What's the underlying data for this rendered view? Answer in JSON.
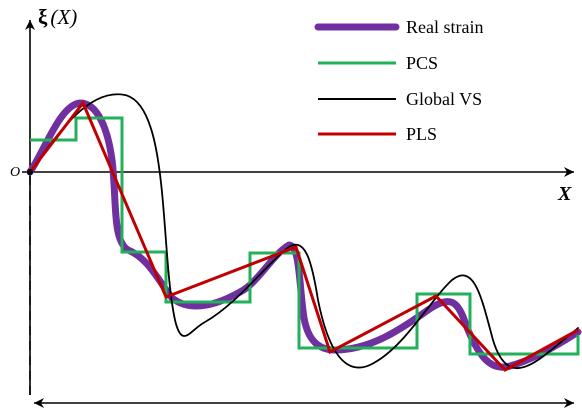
{
  "diagram": {
    "y_axis_label": {
      "symbol": "ξ",
      "argument": "(X)"
    },
    "x_axis_label": "X",
    "origin_label": "O",
    "legend": [
      {
        "label": "Real strain",
        "color": "#7030a0"
      },
      {
        "label": "PCS",
        "color": "#22b05a"
      },
      {
        "label": "Global VS",
        "color": "#000000"
      },
      {
        "label": "PLS",
        "color": "#c00000"
      }
    ]
  }
}
